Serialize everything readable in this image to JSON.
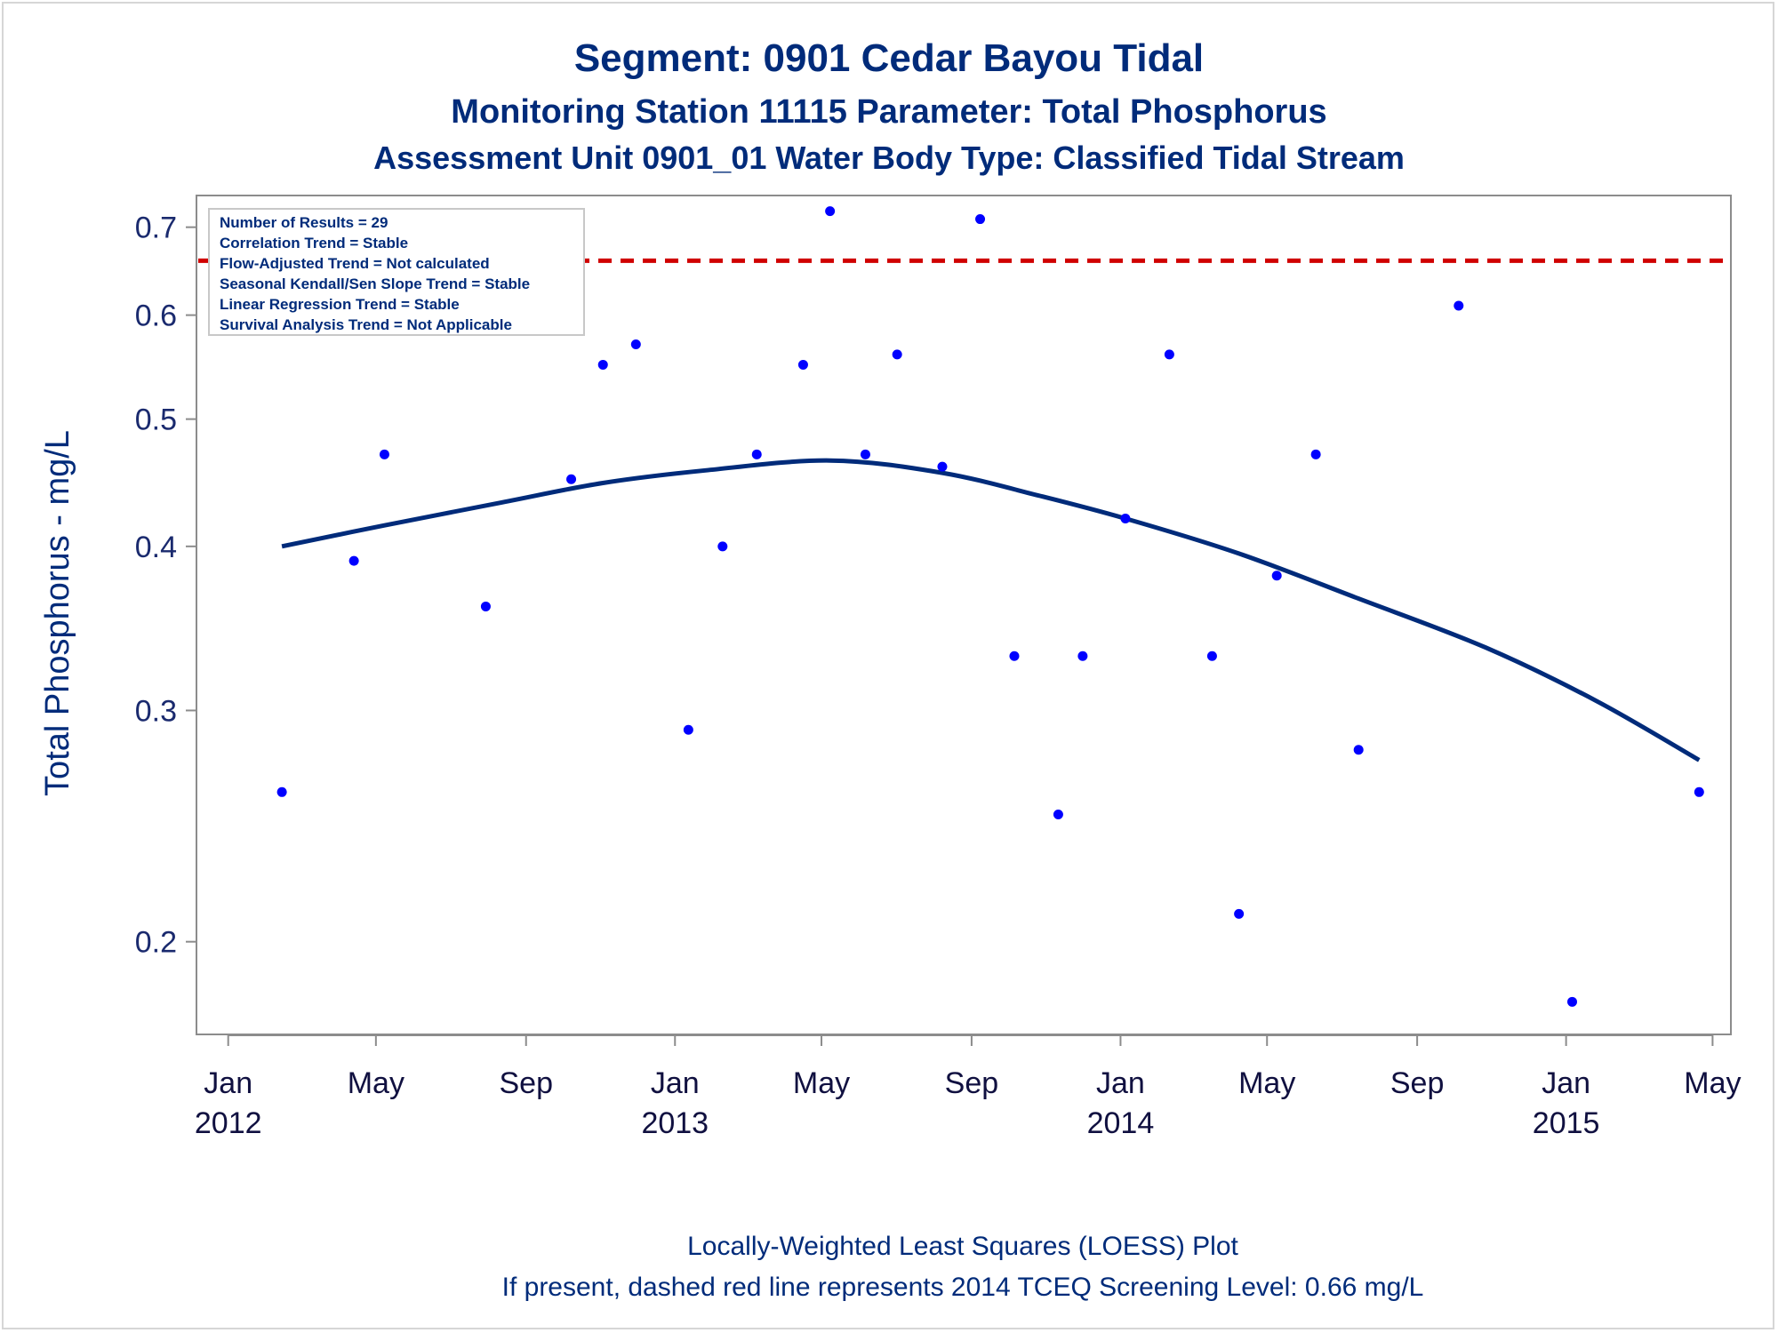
{
  "chart_data": {
    "type": "scatter",
    "title": "Segment: 0901  Cedar Bayou Tidal",
    "subtitle": "Monitoring Station 11115 Parameter: Total Phosphorus",
    "subtitle2": "Assessment Unit 0901_01   Water Body Type: Classified Tidal Stream",
    "ylabel": "Total Phosphorus - mg/L",
    "yscale": "log",
    "ylim": [
      0.17,
      0.74
    ],
    "xlim": [
      "2011-12-06",
      "2015-05-16"
    ],
    "yticks": [
      0.2,
      0.3,
      0.4,
      0.5,
      0.6,
      0.7
    ],
    "ytick_labels": [
      "0.2",
      "0.3",
      "0.4",
      "0.5",
      "0.6",
      "0.7"
    ],
    "xticks": [
      {
        "date": "2012-01-01",
        "label": "Jan",
        "year": "2012"
      },
      {
        "date": "2012-05-01",
        "label": "May",
        "year": ""
      },
      {
        "date": "2012-09-01",
        "label": "Sep",
        "year": ""
      },
      {
        "date": "2013-01-01",
        "label": "Jan",
        "year": "2013"
      },
      {
        "date": "2013-05-01",
        "label": "May",
        "year": ""
      },
      {
        "date": "2013-09-01",
        "label": "Sep",
        "year": ""
      },
      {
        "date": "2014-01-01",
        "label": "Jan",
        "year": "2014"
      },
      {
        "date": "2014-05-01",
        "label": "May",
        "year": ""
      },
      {
        "date": "2014-09-01",
        "label": "Sep",
        "year": ""
      },
      {
        "date": "2015-01-01",
        "label": "Jan",
        "year": "2015"
      },
      {
        "date": "2015-05-01",
        "label": "May",
        "year": ""
      }
    ],
    "points": [
      {
        "x": "2012-02-14",
        "y": 0.26
      },
      {
        "x": "2012-04-13",
        "y": 0.39
      },
      {
        "x": "2012-05-08",
        "y": 0.47
      },
      {
        "x": "2012-07-30",
        "y": 0.36
      },
      {
        "x": "2012-10-08",
        "y": 0.45
      },
      {
        "x": "2012-11-03",
        "y": 0.55
      },
      {
        "x": "2012-11-30",
        "y": 0.57
      },
      {
        "x": "2013-01-12",
        "y": 0.29
      },
      {
        "x": "2013-02-09",
        "y": 0.4
      },
      {
        "x": "2013-03-09",
        "y": 0.47
      },
      {
        "x": "2013-04-16",
        "y": 0.55
      },
      {
        "x": "2013-05-08",
        "y": 0.72
      },
      {
        "x": "2013-06-06",
        "y": 0.47
      },
      {
        "x": "2013-07-02",
        "y": 0.56
      },
      {
        "x": "2013-08-08",
        "y": 0.46
      },
      {
        "x": "2013-09-08",
        "y": 0.71
      },
      {
        "x": "2013-10-06",
        "y": 0.33
      },
      {
        "x": "2013-11-11",
        "y": 0.25
      },
      {
        "x": "2013-12-01",
        "y": 0.33
      },
      {
        "x": "2014-01-05",
        "y": 0.42
      },
      {
        "x": "2014-02-10",
        "y": 0.56
      },
      {
        "x": "2014-03-17",
        "y": 0.33
      },
      {
        "x": "2014-04-08",
        "y": 0.21
      },
      {
        "x": "2014-05-09",
        "y": 0.38
      },
      {
        "x": "2014-06-10",
        "y": 0.47
      },
      {
        "x": "2014-07-15",
        "y": 0.28
      },
      {
        "x": "2014-10-05",
        "y": 0.61
      },
      {
        "x": "2015-01-06",
        "y": 0.18
      },
      {
        "x": "2015-04-20",
        "y": 0.26
      }
    ],
    "loess": [
      {
        "x": "2012-02-14",
        "y": 0.4
      },
      {
        "x": "2012-05-08",
        "y": 0.415
      },
      {
        "x": "2012-08-12",
        "y": 0.432
      },
      {
        "x": "2012-11-03",
        "y": 0.447
      },
      {
        "x": "2013-01-26",
        "y": 0.457
      },
      {
        "x": "2013-05-08",
        "y": 0.465
      },
      {
        "x": "2013-08-08",
        "y": 0.455
      },
      {
        "x": "2013-10-27",
        "y": 0.437
      },
      {
        "x": "2014-01-05",
        "y": 0.42
      },
      {
        "x": "2014-04-08",
        "y": 0.395
      },
      {
        "x": "2014-07-15",
        "y": 0.365
      },
      {
        "x": "2014-10-27",
        "y": 0.335
      },
      {
        "x": "2015-01-26",
        "y": 0.305
      },
      {
        "x": "2015-04-20",
        "y": 0.275
      }
    ],
    "screening_level": 0.66,
    "colors": {
      "points": "#0000ff",
      "loess": "#002b7a",
      "screening": "#d00000",
      "text": "#002b7a"
    },
    "stats_box": [
      "Number of Results = 29",
      "Correlation Trend = Stable",
      "Flow-Adjusted Trend = Not calculated",
      "Seasonal Kendall/Sen Slope Trend = Stable",
      "Linear Regression Trend = Stable",
      "Survival Analysis Trend = Not Applicable"
    ],
    "stats_box_placement": "top-left",
    "footnote1": "Locally-Weighted Least Squares (LOESS) Plot",
    "footnote2": "If present, dashed red line represents 2014 TCEQ Screening Level: 0.66 mg/L"
  }
}
